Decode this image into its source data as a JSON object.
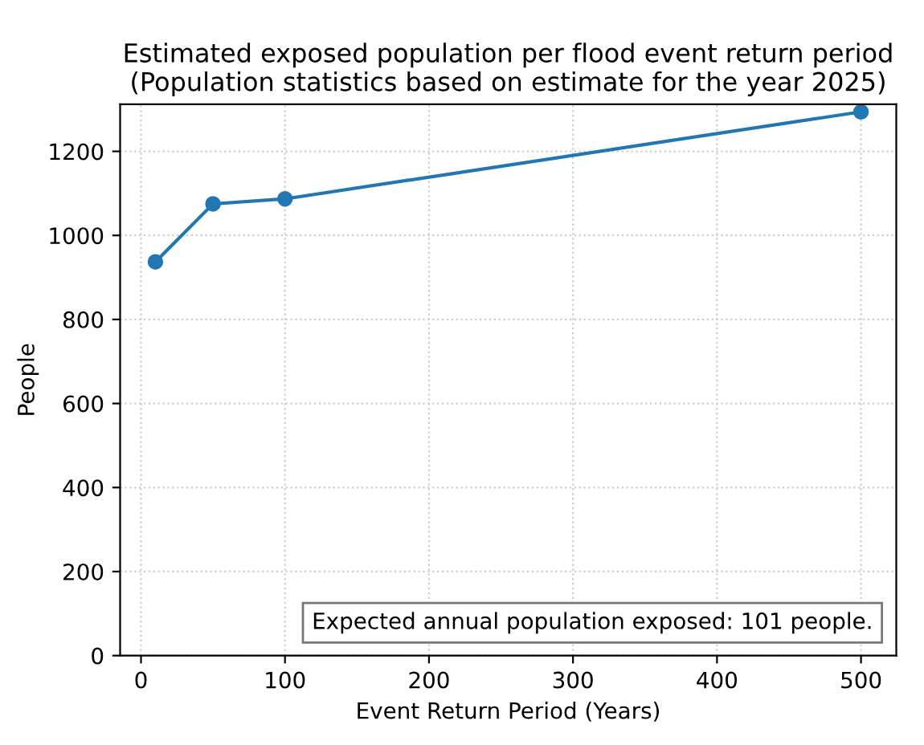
{
  "chart_data": {
    "type": "line",
    "title": "Estimated exposed population per flood event return period\n(Population statistics based on estimate for the year 2025)",
    "xlabel": "Event Return Period (Years)",
    "ylabel": "People",
    "x": [
      10,
      50,
      100,
      500
    ],
    "series": [
      {
        "color": "#1f77b4",
        "values": [
          937,
          1075,
          1087,
          1294
        ]
      }
    ],
    "marker": "circle",
    "line_style": "solid",
    "grid": true,
    "xlim": [
      -14.5,
      524.5
    ],
    "xticks": [
      0,
      100,
      200,
      300,
      400,
      500
    ],
    "ylim": [
      0,
      1312
    ],
    "yticks": [
      0,
      200,
      400,
      600,
      800,
      1000,
      1200
    ],
    "annotations": [
      "Expected annual population exposed: 101 people."
    ]
  }
}
